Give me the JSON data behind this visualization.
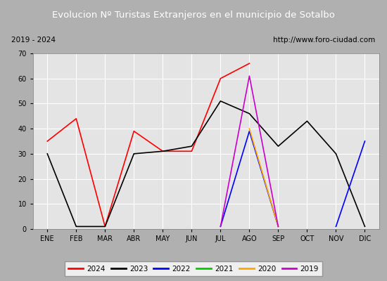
{
  "title": "Evolucion Nº Turistas Extranjeros en el municipio de Sotalbo",
  "subtitle_left": "2019 - 2024",
  "subtitle_right": "http://www.foro-ciudad.com",
  "months": [
    "ENE",
    "FEB",
    "MAR",
    "ABR",
    "MAY",
    "JUN",
    "JUL",
    "AGO",
    "SEP",
    "OCT",
    "NOV",
    "DIC"
  ],
  "series": {
    "2024": {
      "data": [
        35,
        44,
        1,
        39,
        31,
        31,
        60,
        66,
        null,
        null,
        null,
        null
      ],
      "color": "#ff0000",
      "linewidth": 1.2
    },
    "2023": {
      "data": [
        30,
        1,
        1,
        30,
        31,
        33,
        51,
        46,
        33,
        43,
        30,
        1
      ],
      "color": "#000000",
      "linewidth": 1.2
    },
    "2022": {
      "data": [
        null,
        null,
        null,
        null,
        null,
        null,
        1,
        39,
        1,
        null,
        1,
        35
      ],
      "color": "#0000ff",
      "linewidth": 1.2
    },
    "2021": {
      "data": [
        null,
        null,
        null,
        null,
        null,
        null,
        null,
        null,
        null,
        null,
        null,
        null
      ],
      "color": "#00cc00",
      "linewidth": 1.2
    },
    "2020": {
      "data": [
        null,
        null,
        null,
        null,
        null,
        null,
        null,
        40,
        1,
        null,
        null,
        null
      ],
      "color": "#ffa500",
      "linewidth": 1.2
    },
    "2019": {
      "data": [
        null,
        null,
        null,
        null,
        null,
        null,
        1,
        61,
        1,
        null,
        null,
        null
      ],
      "color": "#cc00cc",
      "linewidth": 1.2
    }
  },
  "ylim": [
    0,
    70
  ],
  "yticks": [
    0,
    10,
    20,
    30,
    40,
    50,
    60,
    70
  ],
  "title_bg_color": "#4080c0",
  "title_text_color": "#ffffff",
  "plot_bg_color": "#e4e4e4",
  "outer_bg_color": "#b0b0b0",
  "grid_color": "#ffffff",
  "subtitle_bg_color": "#f0f0f0",
  "legend_order": [
    "2024",
    "2023",
    "2022",
    "2021",
    "2020",
    "2019"
  ],
  "title_fontsize": 9.5,
  "tick_fontsize": 7,
  "subtitle_fontsize": 7.5
}
